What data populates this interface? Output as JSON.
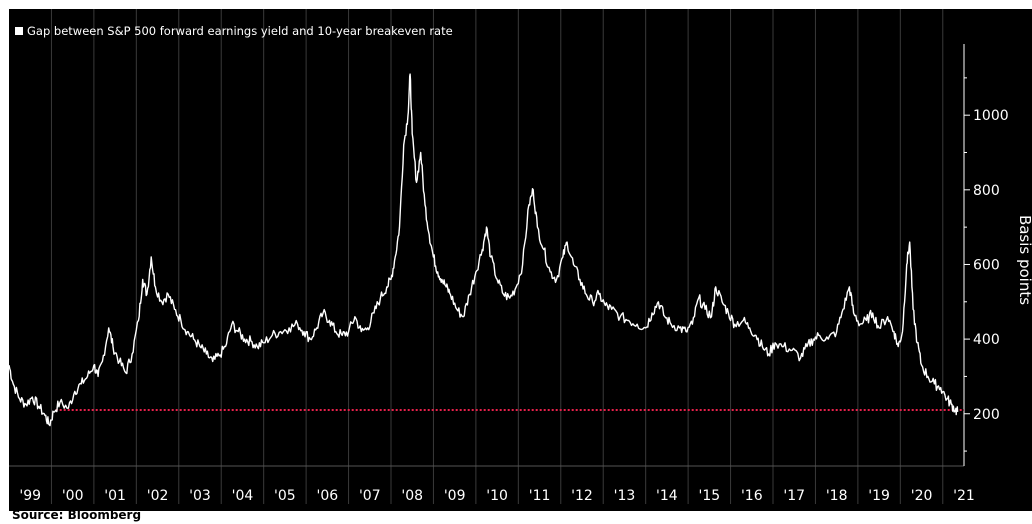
{
  "colors": {
    "background": "#000000",
    "series": "#ffffff",
    "reference_line": "#e8214b",
    "axis_text": "#ffffff",
    "gridline": "#3a3a3a"
  },
  "source": "Source: Bloomberg",
  "chart_data": {
    "type": "line",
    "title": "",
    "legend": [
      {
        "label": "Gap between S&P 500 forward earnings yield and 10-year breakeven rate",
        "color": "#ffffff"
      }
    ],
    "legend_position": "top-left",
    "xlabel": "",
    "ylabel": "Basis points",
    "y_axis_side": "right",
    "ylim": [
      60,
      1180
    ],
    "yticks": [
      200,
      400,
      600,
      800,
      1000
    ],
    "xlim": [
      1999.0,
      2021.5
    ],
    "xtick_labels": [
      "'99",
      "'00",
      "'01",
      "'02",
      "'03",
      "'04",
      "'05",
      "'06",
      "'07",
      "'08",
      "'09",
      "'10",
      "'11",
      "'12",
      "'13",
      "'14",
      "'15",
      "'16",
      "'17",
      "'18",
      "'19",
      "'20",
      "'21"
    ],
    "grid": {
      "vertical": true,
      "horizontal": false
    },
    "reference_line": {
      "y": 210,
      "x_start": 2000.1,
      "x_end": 2021.5,
      "style": "dotted"
    },
    "series": [
      {
        "name": "Gap between S&P 500 forward earnings yield and 10-year breakeven rate",
        "points": [
          [
            1999.0,
            330
          ],
          [
            1999.1,
            280
          ],
          [
            1999.25,
            240
          ],
          [
            1999.4,
            225
          ],
          [
            1999.55,
            245
          ],
          [
            1999.7,
            220
          ],
          [
            1999.85,
            195
          ],
          [
            1999.95,
            170
          ],
          [
            2000.05,
            205
          ],
          [
            2000.2,
            230
          ],
          [
            2000.4,
            215
          ],
          [
            2000.55,
            260
          ],
          [
            2000.7,
            280
          ],
          [
            2000.85,
            300
          ],
          [
            2001.0,
            330
          ],
          [
            2001.1,
            300
          ],
          [
            2001.2,
            340
          ],
          [
            2001.35,
            430
          ],
          [
            2001.45,
            380
          ],
          [
            2001.6,
            340
          ],
          [
            2001.75,
            310
          ],
          [
            2001.9,
            360
          ],
          [
            2002.05,
            450
          ],
          [
            2002.15,
            560
          ],
          [
            2002.25,
            520
          ],
          [
            2002.35,
            620
          ],
          [
            2002.45,
            540
          ],
          [
            2002.6,
            500
          ],
          [
            2002.75,
            520
          ],
          [
            2002.9,
            480
          ],
          [
            2003.05,
            450
          ],
          [
            2003.2,
            420
          ],
          [
            2003.35,
            400
          ],
          [
            2003.5,
            380
          ],
          [
            2003.65,
            360
          ],
          [
            2003.8,
            340
          ],
          [
            2003.95,
            355
          ],
          [
            2004.1,
            380
          ],
          [
            2004.25,
            440
          ],
          [
            2004.4,
            420
          ],
          [
            2004.55,
            400
          ],
          [
            2004.7,
            395
          ],
          [
            2004.85,
            380
          ],
          [
            2005.0,
            390
          ],
          [
            2005.2,
            410
          ],
          [
            2005.4,
            420
          ],
          [
            2005.6,
            430
          ],
          [
            2005.8,
            440
          ],
          [
            2005.95,
            420
          ],
          [
            2006.1,
            400
          ],
          [
            2006.25,
            430
          ],
          [
            2006.4,
            470
          ],
          [
            2006.55,
            450
          ],
          [
            2006.7,
            420
          ],
          [
            2006.85,
            410
          ],
          [
            2007.0,
            420
          ],
          [
            2007.15,
            460
          ],
          [
            2007.3,
            420
          ],
          [
            2007.45,
            430
          ],
          [
            2007.6,
            470
          ],
          [
            2007.75,
            510
          ],
          [
            2007.9,
            540
          ],
          [
            2008.0,
            560
          ],
          [
            2008.1,
            620
          ],
          [
            2008.2,
            700
          ],
          [
            2008.3,
            920
          ],
          [
            2008.4,
            1000
          ],
          [
            2008.45,
            1110
          ],
          [
            2008.5,
            950
          ],
          [
            2008.6,
            820
          ],
          [
            2008.7,
            900
          ],
          [
            2008.8,
            760
          ],
          [
            2008.9,
            680
          ],
          [
            2009.0,
            620
          ],
          [
            2009.1,
            580
          ],
          [
            2009.2,
            560
          ],
          [
            2009.3,
            540
          ],
          [
            2009.4,
            520
          ],
          [
            2009.55,
            480
          ],
          [
            2009.7,
            460
          ],
          [
            2009.85,
            520
          ],
          [
            2010.0,
            580
          ],
          [
            2010.15,
            640
          ],
          [
            2010.25,
            700
          ],
          [
            2010.35,
            620
          ],
          [
            2010.5,
            560
          ],
          [
            2010.65,
            520
          ],
          [
            2010.8,
            510
          ],
          [
            2010.95,
            540
          ],
          [
            2011.1,
            600
          ],
          [
            2011.25,
            760
          ],
          [
            2011.35,
            800
          ],
          [
            2011.45,
            700
          ],
          [
            2011.6,
            640
          ],
          [
            2011.75,
            580
          ],
          [
            2011.9,
            560
          ],
          [
            2012.05,
            620
          ],
          [
            2012.15,
            660
          ],
          [
            2012.3,
            600
          ],
          [
            2012.45,
            560
          ],
          [
            2012.6,
            520
          ],
          [
            2012.75,
            500
          ],
          [
            2012.9,
            520
          ],
          [
            2013.05,
            490
          ],
          [
            2013.2,
            480
          ],
          [
            2013.4,
            460
          ],
          [
            2013.6,
            450
          ],
          [
            2013.8,
            440
          ],
          [
            2014.0,
            430
          ],
          [
            2014.15,
            470
          ],
          [
            2014.3,
            500
          ],
          [
            2014.45,
            460
          ],
          [
            2014.6,
            440
          ],
          [
            2014.8,
            430
          ],
          [
            2014.95,
            420
          ],
          [
            2015.1,
            440
          ],
          [
            2015.25,
            510
          ],
          [
            2015.4,
            480
          ],
          [
            2015.55,
            460
          ],
          [
            2015.65,
            540
          ],
          [
            2015.8,
            500
          ],
          [
            2015.95,
            470
          ],
          [
            2016.1,
            440
          ],
          [
            2016.3,
            450
          ],
          [
            2016.45,
            430
          ],
          [
            2016.6,
            410
          ],
          [
            2016.75,
            380
          ],
          [
            2016.9,
            360
          ],
          [
            2017.05,
            390
          ],
          [
            2017.25,
            380
          ],
          [
            2017.45,
            370
          ],
          [
            2017.65,
            350
          ],
          [
            2017.8,
            380
          ],
          [
            2017.95,
            400
          ],
          [
            2018.1,
            410
          ],
          [
            2018.3,
            400
          ],
          [
            2018.5,
            420
          ],
          [
            2018.65,
            480
          ],
          [
            2018.8,
            540
          ],
          [
            2018.9,
            470
          ],
          [
            2019.05,
            440
          ],
          [
            2019.2,
            450
          ],
          [
            2019.35,
            470
          ],
          [
            2019.5,
            430
          ],
          [
            2019.7,
            460
          ],
          [
            2019.85,
            420
          ],
          [
            2019.95,
            380
          ],
          [
            2020.05,
            420
          ],
          [
            2020.15,
            600
          ],
          [
            2020.22,
            660
          ],
          [
            2020.3,
            480
          ],
          [
            2020.4,
            390
          ],
          [
            2020.5,
            330
          ],
          [
            2020.65,
            300
          ],
          [
            2020.8,
            280
          ],
          [
            2020.95,
            270
          ],
          [
            2021.1,
            240
          ],
          [
            2021.2,
            225
          ],
          [
            2021.3,
            210
          ],
          [
            2021.35,
            205
          ]
        ]
      }
    ]
  }
}
